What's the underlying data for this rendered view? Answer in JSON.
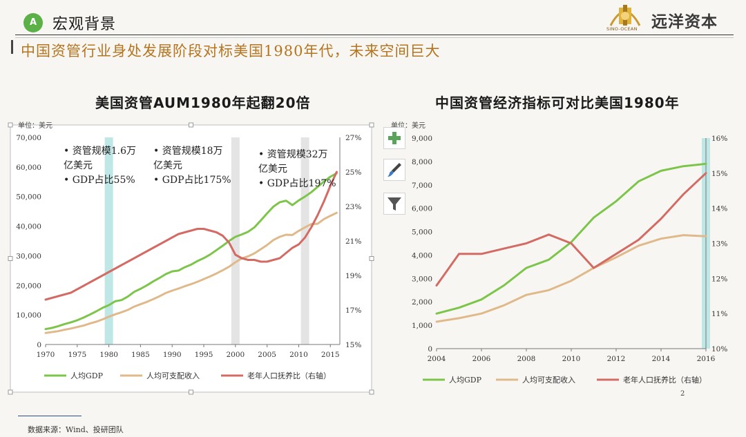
{
  "header": {
    "badge": "A",
    "section_title": "宏观背景",
    "brand_cn": "远洋资本",
    "brand_en": "SINO-OCEAN"
  },
  "headline": "中国资管行业身处发展阶段对标美国1980年代，未来空间巨大",
  "footer": {
    "source": "数据来源：Wind、投研团队",
    "page": "2"
  },
  "colors": {
    "gdp": "#7cc54a",
    "income": "#e0b98a",
    "elderly": "#d46a64",
    "band_teal": "#bfe7e6",
    "band_gray": "#e4e4e4"
  },
  "chart_data": [
    {
      "type": "line",
      "title": "美国资管AUM1980年起翻20倍",
      "unit": "单位：美元",
      "x": [
        1970,
        1971,
        1972,
        1973,
        1974,
        1975,
        1976,
        1977,
        1978,
        1979,
        1980,
        1981,
        1982,
        1983,
        1984,
        1985,
        1986,
        1987,
        1988,
        1989,
        1990,
        1991,
        1992,
        1993,
        1994,
        1995,
        1996,
        1997,
        1998,
        1999,
        2000,
        2001,
        2002,
        2003,
        2004,
        2005,
        2006,
        2007,
        2008,
        2009,
        2010,
        2011,
        2012,
        2013,
        2014,
        2015,
        2016
      ],
      "xticks": [
        "1970",
        "1975",
        "1980",
        "1985",
        "1990",
        "1995",
        "2000",
        "2005",
        "2010",
        "2015"
      ],
      "xlim": [
        1970,
        2016.5
      ],
      "ylim": [
        0,
        70000
      ],
      "yticks": [
        "0",
        "10,000",
        "20,000",
        "30,000",
        "40,000",
        "50,000",
        "60,000",
        "70,000"
      ],
      "y2lim": [
        15,
        27
      ],
      "y2ticks": [
        "15%",
        "17%",
        "19%",
        "21%",
        "23%",
        "25%",
        "27%"
      ],
      "bands": [
        {
          "x": 1980,
          "color": "teal"
        },
        {
          "x": 2000,
          "color": "gray"
        },
        {
          "x": 2011,
          "color": "gray"
        }
      ],
      "annotations": [
        {
          "lines": [
            "• 资管规模1.6万",
            "  亿美元",
            "• GDP占比55%"
          ]
        },
        {
          "lines": [
            "• 资管规模18万",
            "  亿美元",
            "• GDP占比175%"
          ]
        },
        {
          "lines": [
            "• 资管规模32万",
            "  亿美元",
            "• GDP占比197%"
          ]
        }
      ],
      "series": [
        {
          "name": "人均GDP",
          "key": "gdp",
          "axis": "left",
          "values": [
            5200,
            5600,
            6200,
            6900,
            7500,
            8200,
            9100,
            10100,
            11200,
            12400,
            13300,
            14600,
            15000,
            16200,
            17800,
            18800,
            20000,
            21300,
            22500,
            23800,
            24700,
            25000,
            26100,
            27000,
            28200,
            29200,
            30400,
            31900,
            33400,
            35000,
            36400,
            37200,
            38100,
            39600,
            41900,
            44300,
            46600,
            48100,
            48600,
            47100,
            48700,
            50000,
            51500,
            53300,
            55100,
            56700,
            57900
          ]
        },
        {
          "name": "人均可支配收入",
          "key": "income",
          "axis": "left",
          "values": [
            3900,
            4200,
            4500,
            5000,
            5400,
            5900,
            6400,
            7100,
            7700,
            8500,
            9400,
            10200,
            10900,
            11700,
            12800,
            13600,
            14400,
            15300,
            16300,
            17400,
            18200,
            18900,
            19700,
            20400,
            21200,
            22100,
            23000,
            24000,
            25100,
            26300,
            27800,
            29100,
            29800,
            30800,
            32200,
            33600,
            35300,
            36400,
            37100,
            37000,
            38400,
            39600,
            40700,
            40800,
            42400,
            43500,
            44500
          ]
        },
        {
          "name": "老年人口抚养比（右轴）",
          "key": "elderly",
          "axis": "right",
          "values": [
            17.6,
            17.7,
            17.8,
            17.9,
            18.0,
            18.2,
            18.4,
            18.6,
            18.8,
            19.0,
            19.2,
            19.4,
            19.6,
            19.8,
            20.0,
            20.2,
            20.4,
            20.6,
            20.8,
            21.0,
            21.2,
            21.4,
            21.5,
            21.6,
            21.7,
            21.7,
            21.6,
            21.5,
            21.3,
            20.9,
            20.2,
            20.0,
            19.9,
            19.9,
            19.8,
            19.8,
            19.9,
            20.0,
            20.3,
            20.6,
            20.8,
            21.2,
            21.8,
            22.5,
            23.3,
            24.2,
            25.0
          ]
        }
      ]
    },
    {
      "type": "line",
      "title": "中国资管经济指标可对比美国1980年",
      "unit": "单位：美元",
      "x": [
        2004,
        2005,
        2006,
        2007,
        2008,
        2009,
        2010,
        2011,
        2012,
        2013,
        2014,
        2015,
        2016
      ],
      "xticks": [
        "2004",
        "2006",
        "2008",
        "2010",
        "2012",
        "2014",
        "2016"
      ],
      "xlim": [
        2004,
        2016
      ],
      "ylim": [
        0,
        9000
      ],
      "yticks": [
        "0",
        "1,000",
        "2,000",
        "3,000",
        "4,000",
        "5,000",
        "6,000",
        "7,000",
        "8,000",
        "9,000"
      ],
      "y2lim": [
        10,
        16
      ],
      "y2ticks": [
        "10%",
        "11%",
        "12%",
        "13%",
        "14%",
        "15%",
        "16%"
      ],
      "bands": [
        {
          "x": 2016,
          "color": "teal"
        }
      ],
      "series": [
        {
          "name": "人均GDP",
          "key": "gdp",
          "axis": "left",
          "values": [
            1500,
            1750,
            2100,
            2700,
            3450,
            3800,
            4550,
            5600,
            6300,
            7150,
            7600,
            7800,
            7900
          ]
        },
        {
          "name": "人均可支配收入",
          "key": "income",
          "axis": "left",
          "values": [
            1150,
            1300,
            1500,
            1850,
            2300,
            2500,
            2900,
            3450,
            3900,
            4400,
            4700,
            4850,
            4800
          ]
        },
        {
          "name": "老年人口抚养比（右轴）",
          "key": "elderly",
          "axis": "right",
          "values": [
            11.8,
            12.7,
            12.7,
            12.85,
            13.0,
            13.25,
            13.0,
            12.3,
            12.7,
            13.1,
            13.7,
            14.4,
            15.0
          ]
        }
      ]
    }
  ]
}
